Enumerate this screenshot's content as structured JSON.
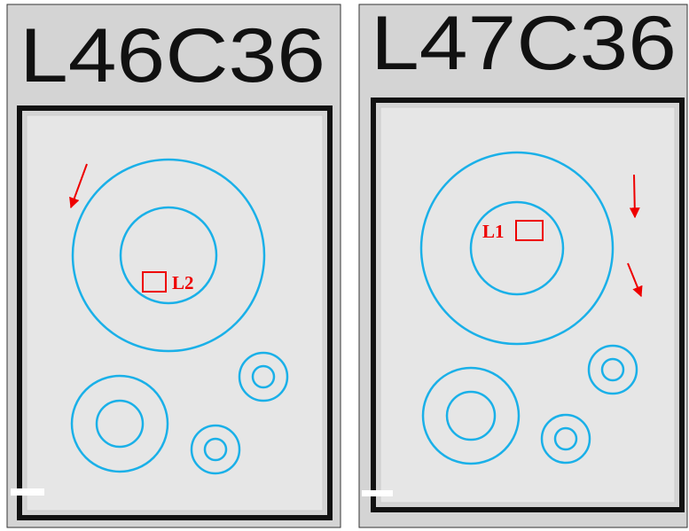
{
  "panels": [
    {
      "label": "L46C36",
      "region": "L2"
    },
    {
      "label": "L47C36",
      "region": "L1"
    }
  ]
}
